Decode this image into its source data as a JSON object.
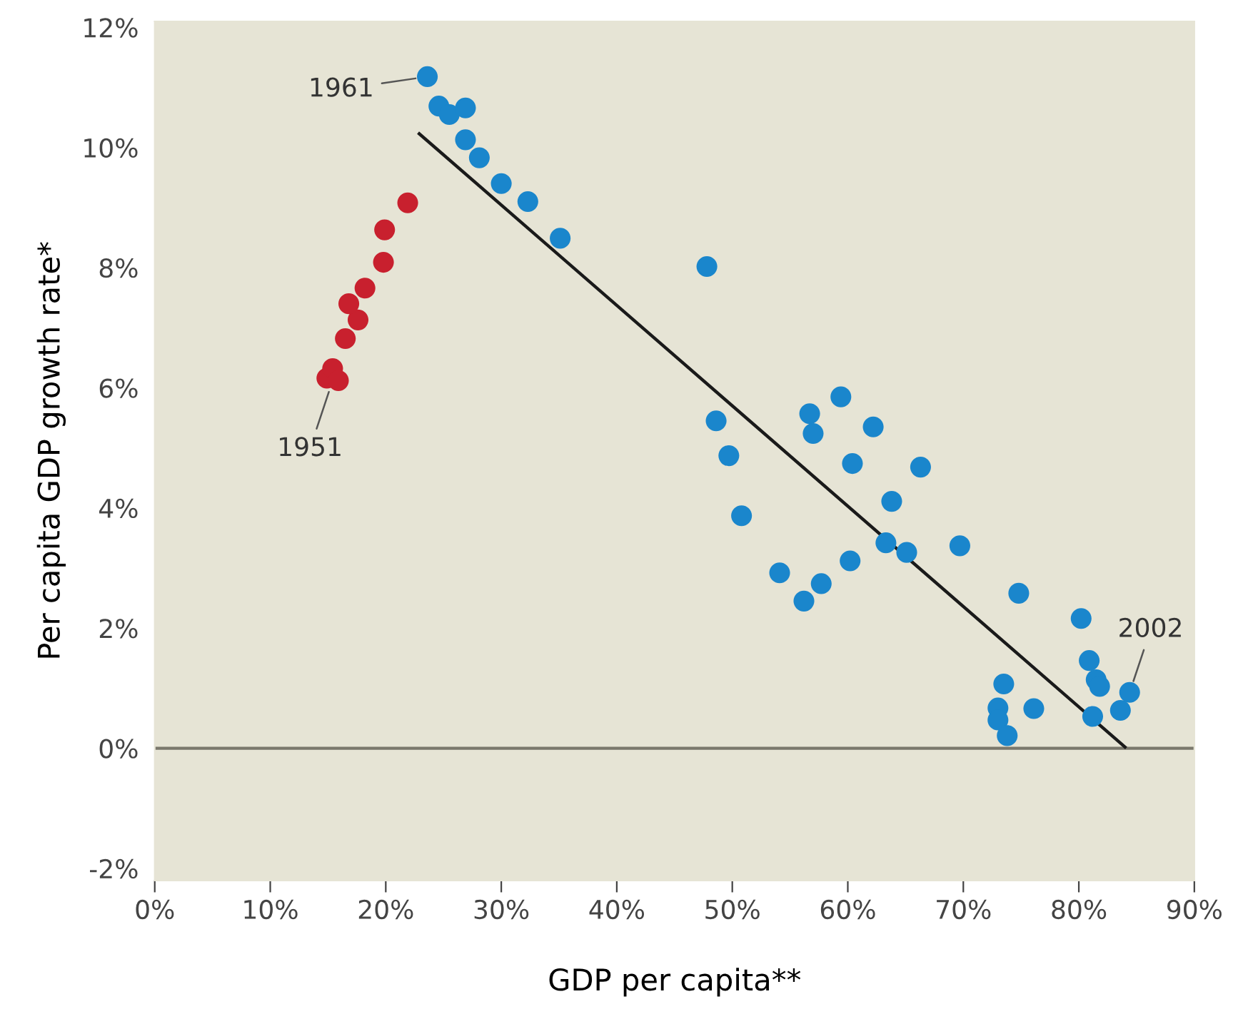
{
  "chart_data": {
    "type": "scatter",
    "xlabel": "GDP per capita**",
    "ylabel": "Per capita GDP growth rate*",
    "xlim": [
      0,
      90
    ],
    "ylim": [
      -2.2,
      12.1
    ],
    "xticks": [
      {
        "value": 0,
        "label": "0%"
      },
      {
        "value": 10,
        "label": "10%"
      },
      {
        "value": 20,
        "label": "20%"
      },
      {
        "value": 30,
        "label": "30%"
      },
      {
        "value": 40,
        "label": "40%"
      },
      {
        "value": 50,
        "label": "50%"
      },
      {
        "value": 60,
        "label": "60%"
      },
      {
        "value": 70,
        "label": "70%"
      },
      {
        "value": 80,
        "label": "80%"
      },
      {
        "value": 90,
        "label": "90%"
      }
    ],
    "yticks": [
      {
        "value": -2,
        "label": "-2%"
      },
      {
        "value": 0,
        "label": "0%"
      },
      {
        "value": 2,
        "label": "2%"
      },
      {
        "value": 4,
        "label": "4%"
      },
      {
        "value": 6,
        "label": "6%"
      },
      {
        "value": 8,
        "label": "8%"
      },
      {
        "value": 10,
        "label": "10%"
      },
      {
        "value": 12,
        "label": "12%"
      }
    ],
    "grid": false,
    "legend": false,
    "marker": "circle",
    "series": [
      {
        "color": "#c8202e",
        "x": [
          14.9,
          15.4,
          15.9,
          16.5,
          17.6,
          16.8,
          18.2,
          19.8,
          19.9,
          21.9
        ],
        "values": [
          6.16,
          6.32,
          6.12,
          6.82,
          7.13,
          7.4,
          7.66,
          8.09,
          8.63,
          9.08
        ]
      },
      {
        "color": "#1a86cc",
        "x": [
          23.6,
          24.6,
          25.5,
          26.9,
          26.9,
          28.1,
          30.0,
          32.3,
          35.1,
          47.8,
          48.6,
          49.7,
          50.8,
          54.1,
          56.2,
          57.7,
          56.7,
          57.0,
          59.4,
          62.2,
          60.4,
          66.3,
          63.8,
          60.2,
          63.3,
          65.1,
          69.7,
          74.8,
          80.2,
          80.9,
          81.5,
          81.8,
          81.2,
          83.6,
          84.4,
          73.5,
          73.0,
          73.0,
          73.8,
          76.1
        ],
        "values": [
          11.18,
          10.69,
          10.55,
          10.66,
          10.13,
          9.83,
          9.4,
          9.1,
          8.49,
          8.02,
          5.45,
          4.87,
          3.87,
          2.92,
          2.45,
          2.74,
          5.57,
          5.24,
          5.85,
          5.35,
          4.74,
          4.68,
          4.11,
          3.12,
          3.42,
          3.26,
          3.37,
          2.58,
          2.16,
          1.46,
          1.14,
          1.03,
          0.53,
          0.63,
          0.93,
          1.07,
          0.67,
          0.47,
          0.21,
          0.66
        ]
      },
      {
        "type": "line",
        "color": "#1a1a1a",
        "marker": "none",
        "x": [
          22.9,
          84.0
        ],
        "values": [
          10.23,
          0.02
        ]
      }
    ],
    "ref_lines": [
      {
        "axis": "y",
        "value": 0,
        "color": "#7a786c"
      }
    ],
    "annotations": [
      {
        "text": "1961",
        "x": 23.6,
        "y": 11.18
      },
      {
        "text": "1951",
        "x": 15.4,
        "y": 6.12
      },
      {
        "text": "2002",
        "x": 84.4,
        "y": 0.93
      }
    ]
  }
}
